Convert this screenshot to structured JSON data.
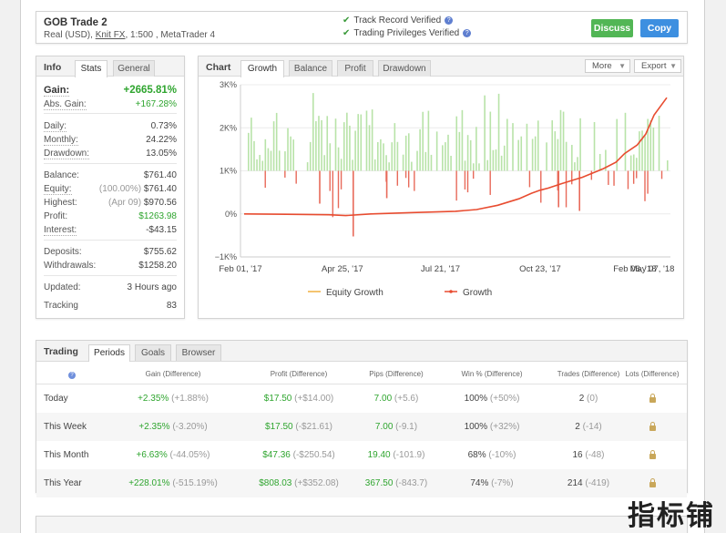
{
  "account": {
    "name": "GOB Trade 2",
    "sub_prefix": "Real (USD), ",
    "broker": "Knit FX",
    "sub_suffix": ", 1:500 , MetaTrader 4",
    "verified": [
      "Track Record Verified",
      "Trading Privileges Verified"
    ],
    "discuss_label": "Discuss",
    "copy_label": "Copy"
  },
  "info": {
    "tabs": [
      "Info",
      "Stats",
      "General"
    ],
    "gain_label": "Gain:",
    "gain_value": "+2665.81%",
    "abs_gain_label": "Abs. Gain:",
    "abs_gain_value": "+167.28%",
    "daily_label": "Daily:",
    "daily_value": "0.73%",
    "monthly_label": "Monthly:",
    "monthly_value": "24.22%",
    "drawdown_label": "Drawdown:",
    "drawdown_value": "13.05%",
    "balance_label": "Balance:",
    "balance_value": "$761.40",
    "equity_label": "Equity:",
    "equity_pct": "(100.00%)",
    "equity_value": "$761.40",
    "highest_label": "Highest:",
    "highest_date": "(Apr 09)",
    "highest_value": "$970.56",
    "profit_label": "Profit:",
    "profit_value": "$1263.98",
    "interest_label": "Interest:",
    "interest_value": "-$43.15",
    "deposits_label": "Deposits:",
    "deposits_value": "$755.62",
    "withdrawals_label": "Withdrawals:",
    "withdrawals_value": "$1258.20",
    "updated_label": "Updated:",
    "updated_value": "3 Hours ago",
    "tracking_label": "Tracking",
    "tracking_value": "83"
  },
  "chart_panel": {
    "label": "Chart",
    "tabs": [
      "Growth",
      "Balance",
      "Profit",
      "Drawdown"
    ],
    "more_label": "More",
    "export_label": "Export"
  },
  "chart_data": {
    "type": "line",
    "yticks": [
      "3K%",
      "2K%",
      "1K%",
      "0%",
      "−1K%"
    ],
    "ylim": [
      -1000,
      3000
    ],
    "xticks": [
      "Feb 01, '17",
      "Apr 25, '17",
      "Jul 21, '17",
      "Oct 23, '17",
      "Feb 06, '18",
      "May 07, '18"
    ],
    "legend_position": "bottom",
    "series": [
      {
        "name": "Equity Growth",
        "color": "#f0b040"
      },
      {
        "name": "Growth",
        "color": "#e84c30",
        "x": [
          0,
          0.1,
          0.2,
          0.24,
          0.3,
          0.4,
          0.5,
          0.55,
          0.6,
          0.65,
          0.68,
          0.7,
          0.72,
          0.75,
          0.8,
          0.85,
          0.88,
          0.9,
          0.93,
          0.95,
          0.97,
          1.0
        ],
        "values": [
          0,
          -10,
          -20,
          -40,
          0,
          30,
          60,
          100,
          200,
          350,
          480,
          550,
          600,
          700,
          850,
          1050,
          1200,
          1400,
          1600,
          1850,
          2300,
          2700
        ]
      }
    ],
    "bars_up_color": "#b8e3a8",
    "bars_down_color": "#e86a5a"
  },
  "trading": {
    "label": "Trading",
    "tabs": [
      "Periods",
      "Goals",
      "Browser"
    ],
    "columns": [
      "Gain (Difference)",
      "Profit (Difference)",
      "Pips (Difference)",
      "Win % (Difference)",
      "Trades (Difference)",
      "Lots (Difference)"
    ],
    "rows": [
      {
        "period": "Today",
        "gain": "+2.35%",
        "gain_diff": "(+1.88%)",
        "profit": "$17.50",
        "profit_diff": "(+$14.00)",
        "pips": "7.00",
        "pips_diff": "(+5.6)",
        "win": "100%",
        "win_diff": "(+50%)",
        "trades": "2",
        "trades_diff": "(0)"
      },
      {
        "period": "This Week",
        "gain": "+2.35%",
        "gain_diff": "(-3.20%)",
        "profit": "$17.50",
        "profit_diff": "(-$21.61)",
        "pips": "7.00",
        "pips_diff": "(-9.1)",
        "win": "100%",
        "win_diff": "(+32%)",
        "trades": "2",
        "trades_diff": "(-14)"
      },
      {
        "period": "This Month",
        "gain": "+6.63%",
        "gain_diff": "(-44.05%)",
        "profit": "$47.36",
        "profit_diff": "(-$250.54)",
        "pips": "19.40",
        "pips_diff": "(-101.9)",
        "win": "68%",
        "win_diff": "(-10%)",
        "trades": "16",
        "trades_diff": "(-48)"
      },
      {
        "period": "This Year",
        "gain": "+228.01%",
        "gain_diff": "(-515.19%)",
        "profit": "$808.03",
        "profit_diff": "(+$352.08)",
        "pips": "367.50",
        "pips_diff": "(-843.7)",
        "win": "74%",
        "win_diff": "(-7%)",
        "trades": "214",
        "trades_diff": "(-419)"
      }
    ]
  },
  "watermark": "指标铺"
}
